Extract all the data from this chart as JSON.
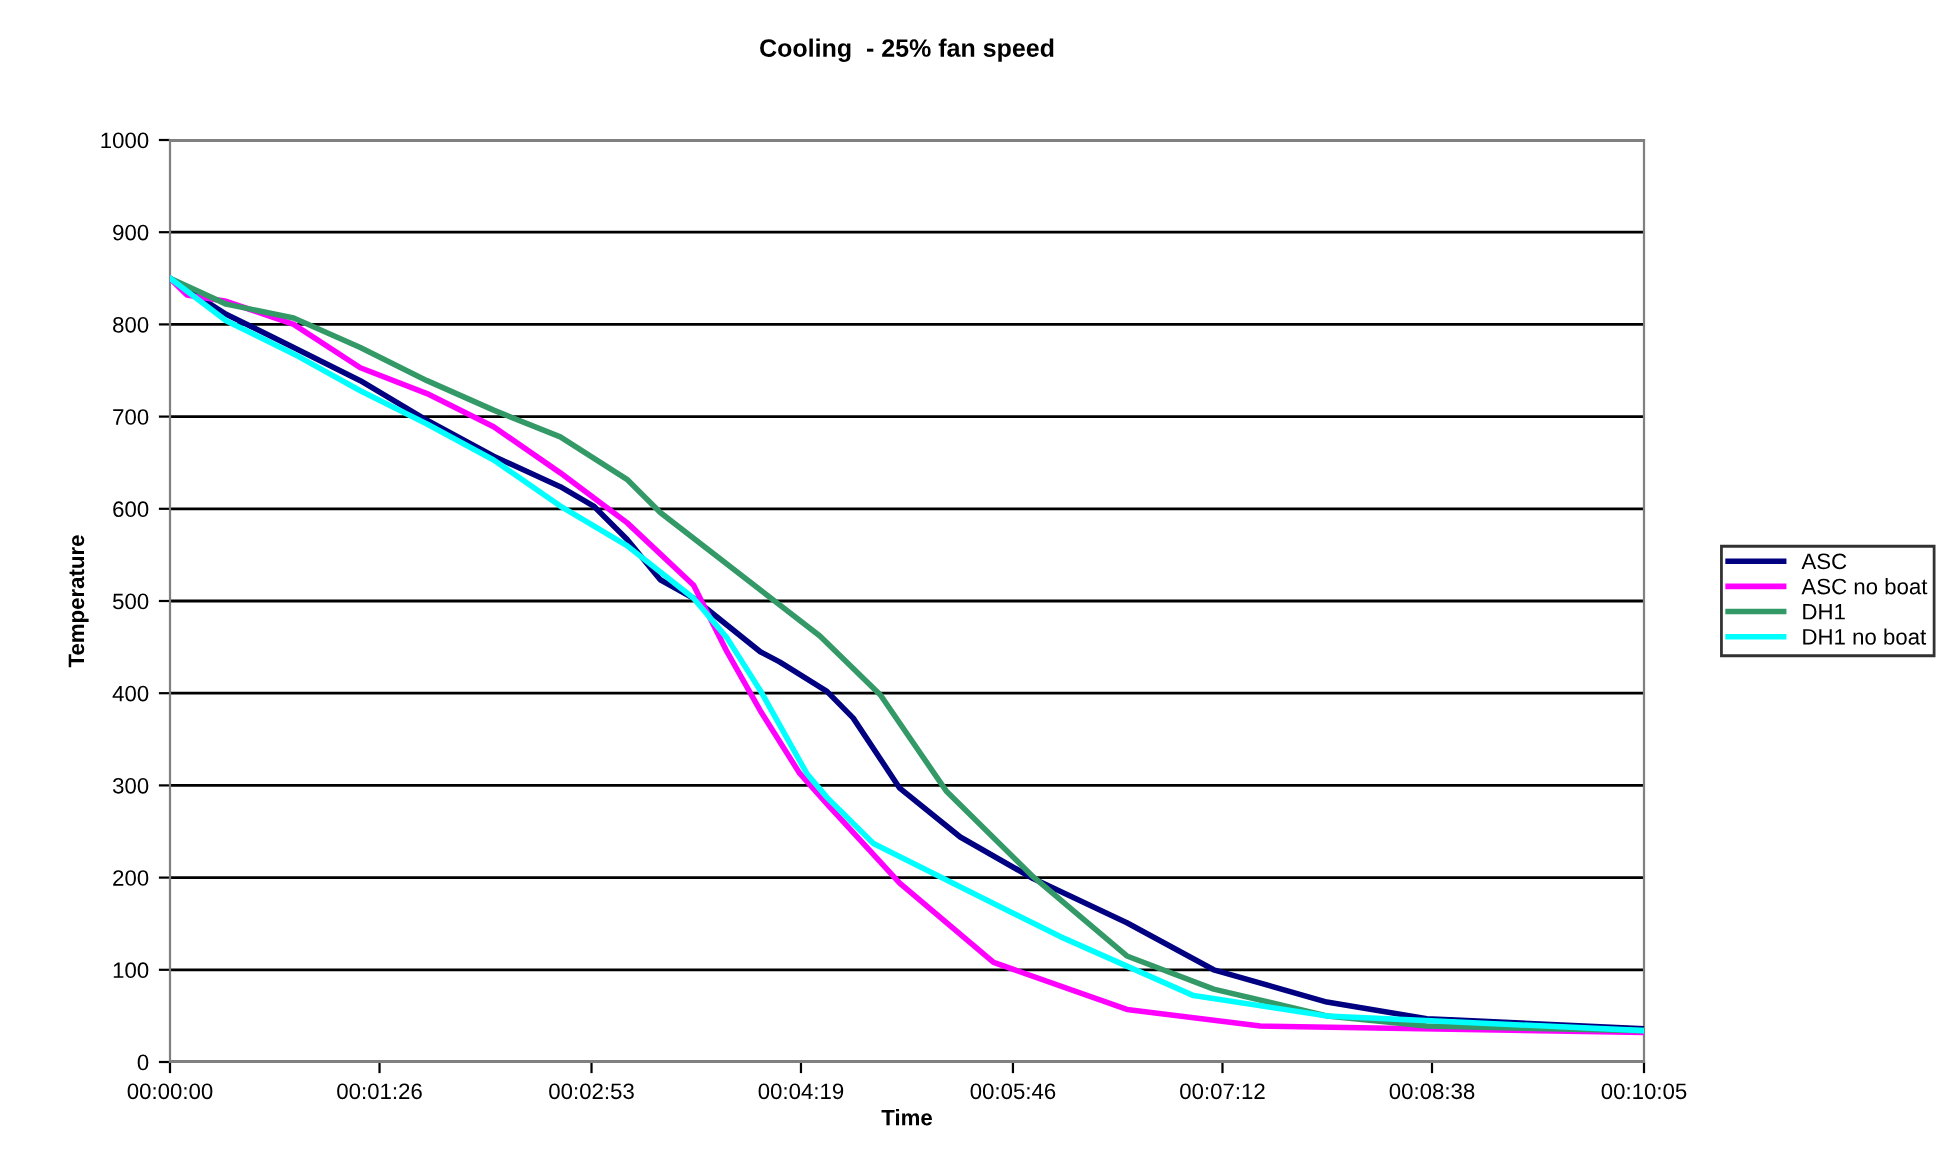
{
  "chart_data": {
    "type": "line",
    "title": "Cooling  - 25% fan speed",
    "xlabel": "Time",
    "ylabel": "Temperature",
    "xlim": [
      0,
      0.16806
    ],
    "xticks": [
      {
        "value": 0,
        "label": "00:00:00"
      },
      {
        "value": 0.02389,
        "label": "00:01:26"
      },
      {
        "value": 0.04806,
        "label": "00:02:53"
      },
      {
        "value": 0.07194,
        "label": "00:04:19"
      },
      {
        "value": 0.09611,
        "label": "00:05:46"
      },
      {
        "value": 0.12,
        "label": "00:07:12"
      },
      {
        "value": 0.14389,
        "label": "00:08:38"
      },
      {
        "value": 0.16806,
        "label": "00:10:05"
      }
    ],
    "ylim": [
      0,
      1000
    ],
    "yticks": [
      0,
      100,
      200,
      300,
      400,
      500,
      600,
      700,
      800,
      900,
      1000
    ],
    "grid": "y",
    "legend": "right",
    "marker": "none",
    "line_style": "solid",
    "series": [
      {
        "name": "ASC",
        "color": "#000080",
        "x": [
          0,
          0.0064,
          0.0141,
          0.0217,
          0.0293,
          0.0369,
          0.0445,
          0.0483,
          0.0521,
          0.0559,
          0.0597,
          0.0673,
          0.0695,
          0.0749,
          0.0779,
          0.0832,
          0.0901,
          0.0984,
          0.1091,
          0.119,
          0.1319,
          0.1433,
          0.16806
        ],
        "values": [
          850,
          811,
          775,
          739,
          696,
          657,
          624,
          603,
          567,
          523,
          503,
          445,
          434,
          402,
          373,
          297,
          244,
          199,
          151,
          100,
          65,
          47,
          36
        ]
      },
      {
        "name": "ASC no boat",
        "color": "#ff00ff",
        "x": [
          0,
          0.0019,
          0.0064,
          0.0141,
          0.0217,
          0.0293,
          0.0369,
          0.0445,
          0.0521,
          0.0597,
          0.0635,
          0.0673,
          0.0718,
          0.0749,
          0.0832,
          0.0939,
          0.1091,
          0.1243,
          0.16806
        ],
        "values": [
          850,
          832,
          825,
          800,
          753,
          725,
          689,
          639,
          585,
          517,
          445,
          381,
          313,
          280,
          194,
          108,
          57,
          39,
          32
        ]
      },
      {
        "name": "DH1",
        "color": "#339966",
        "x": [
          0,
          0.0064,
          0.0141,
          0.0217,
          0.0293,
          0.0369,
          0.0445,
          0.0521,
          0.0559,
          0.0741,
          0.081,
          0.0885,
          0.0984,
          0.1091,
          0.119,
          0.1319,
          0.1433,
          0.16806
        ],
        "values": [
          850,
          822,
          807,
          775,
          739,
          707,
          678,
          632,
          596,
          462,
          398,
          294,
          201,
          115,
          79,
          50,
          39,
          34
        ]
      },
      {
        "name": "DH1 no boat",
        "color": "#00ffff",
        "x": [
          0,
          0.0064,
          0.0141,
          0.0217,
          0.0293,
          0.0369,
          0.0445,
          0.0521,
          0.0597,
          0.0635,
          0.0673,
          0.0726,
          0.0749,
          0.0802,
          0.0939,
          0.1015,
          0.1167,
          0.1319,
          0.16806
        ],
        "values": [
          850,
          804,
          768,
          728,
          692,
          653,
          603,
          560,
          503,
          460,
          403,
          313,
          287,
          237,
          172,
          136,
          72,
          50,
          34
        ]
      }
    ]
  }
}
